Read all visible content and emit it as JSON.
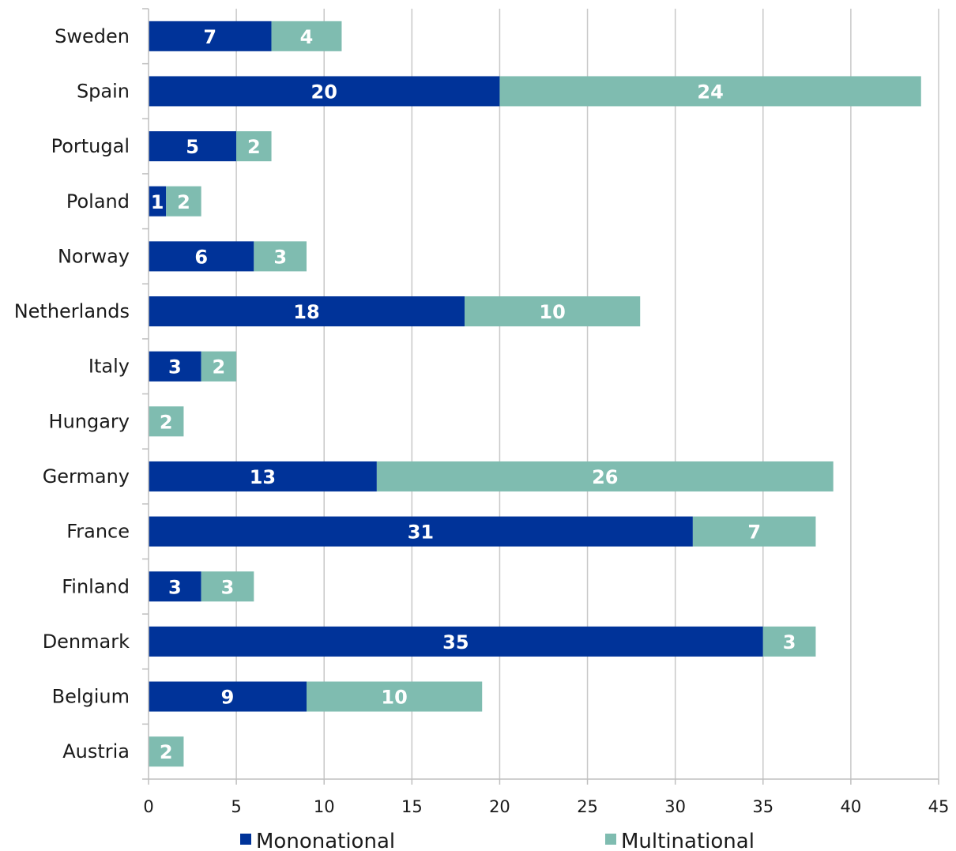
{
  "chart_data": {
    "type": "bar",
    "orientation": "horizontal",
    "stacked": true,
    "categories": [
      "Sweden",
      "Spain",
      "Portugal",
      "Poland",
      "Norway",
      "Netherlands",
      "Italy",
      "Hungary",
      "Germany",
      "France",
      "Finland",
      "Denmark",
      "Belgium",
      "Austria"
    ],
    "series": [
      {
        "name": "Mononational",
        "color": "#003399",
        "values": [
          7,
          20,
          5,
          1,
          6,
          18,
          3,
          0,
          13,
          31,
          3,
          35,
          9,
          0
        ]
      },
      {
        "name": "Multinational",
        "color": "#7fbcb0",
        "values": [
          4,
          24,
          2,
          2,
          3,
          10,
          2,
          2,
          26,
          7,
          3,
          3,
          10,
          2
        ]
      }
    ],
    "xlim": [
      0,
      45
    ],
    "xticks": [
      0,
      5,
      10,
      15,
      20,
      25,
      30,
      35,
      40,
      45
    ],
    "grid": "vertical",
    "legend": "bottom",
    "title": "",
    "xlabel": "",
    "ylabel": ""
  }
}
